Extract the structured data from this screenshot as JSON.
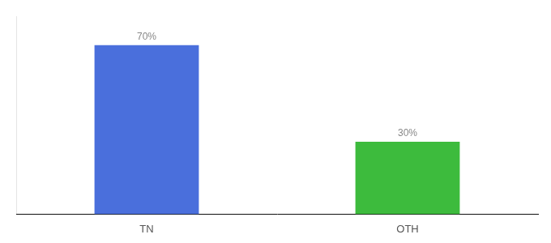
{
  "chart_data": {
    "type": "bar",
    "categories": [
      "TN",
      "OTH"
    ],
    "values": [
      70,
      30
    ],
    "value_labels": [
      "70%",
      "30%"
    ],
    "colors": [
      "#4a6fdc",
      "#3dbb3d"
    ],
    "ylim": [
      0,
      82
    ],
    "yticks": [],
    "data_labels": true,
    "tick_labels": "x",
    "grid": false
  }
}
